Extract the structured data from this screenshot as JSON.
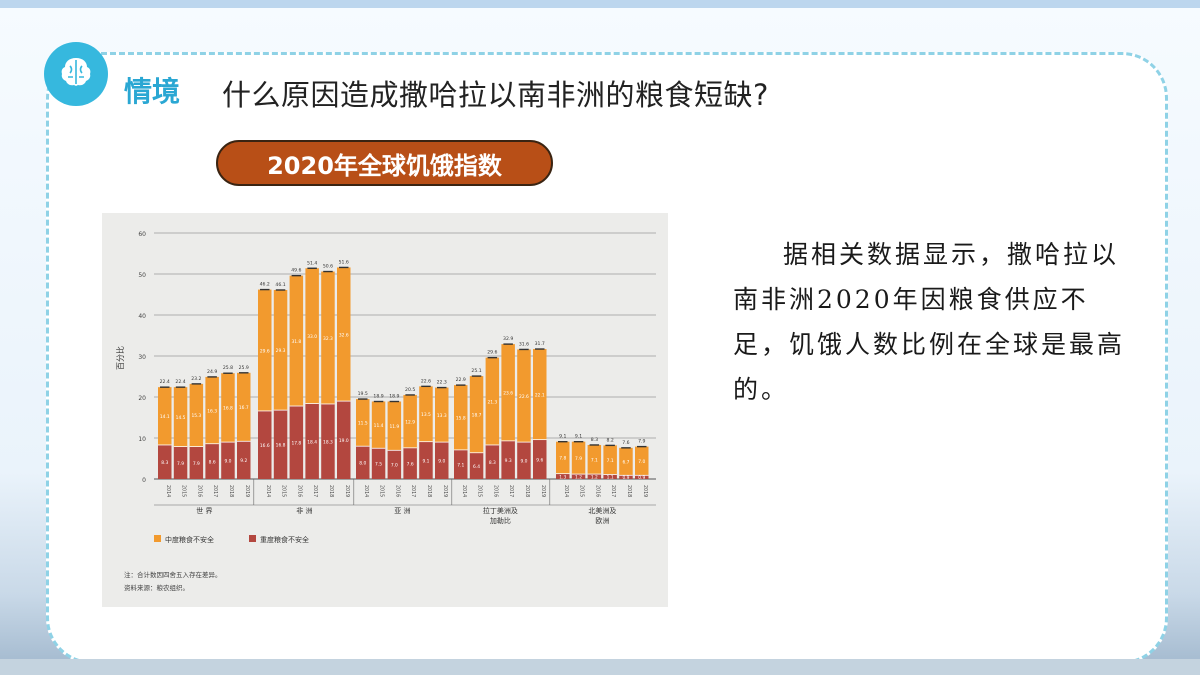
{
  "header": {
    "badge_label": "情境",
    "question": "什么原因造成撒哈拉以南非洲的粮食短缺?"
  },
  "chart_title": "2020年全球饥饿指数",
  "description": "据相关数据显示，撒哈拉以南非洲2020年因粮食供应不足，饥饿人数比例在全球是最高的。",
  "colors": {
    "accent": "#36b8de",
    "pill": "#b84f17",
    "moderate": "#f29a2e",
    "severe": "#b3473f"
  },
  "icons": {
    "badge": "brain-icon"
  },
  "chart_data": {
    "type": "bar",
    "stacked": true,
    "ylabel": "百分比",
    "ylim": [
      0,
      60
    ],
    "yticks": [
      0,
      10,
      20,
      30,
      40,
      50,
      60
    ],
    "grid": true,
    "legend_position": "bottom-left",
    "years": [
      "2014",
      "2015",
      "2016",
      "2017",
      "2018",
      "2019"
    ],
    "groups": [
      {
        "name": "世 界",
        "totals": [
          "22.4",
          "22.4",
          "23.2",
          "24.9",
          "25.8",
          "25.9"
        ],
        "severe": [
          8.3,
          7.9,
          7.9,
          8.6,
          9.0,
          9.2
        ],
        "moderate": [
          14.1,
          14.5,
          15.3,
          16.3,
          16.8,
          16.7
        ]
      },
      {
        "name": "非 洲",
        "totals": [
          "46.2",
          "46.1",
          "49.6",
          "51.4",
          "50.6",
          "51.6"
        ],
        "severe": [
          16.6,
          16.8,
          17.8,
          18.4,
          18.3,
          19.0
        ],
        "moderate": [
          29.6,
          29.3,
          31.8,
          33.0,
          32.3,
          32.6
        ]
      },
      {
        "name": "亚 洲",
        "totals": [
          "19.5",
          "18.9",
          "18.9",
          "20.5",
          "22.6",
          "22.3"
        ],
        "severe": [
          8.0,
          7.5,
          7.0,
          7.6,
          9.1,
          9.0
        ],
        "moderate": [
          11.5,
          11.4,
          11.9,
          12.9,
          13.5,
          13.3
        ]
      },
      {
        "name": "拉丁美洲及加勒比",
        "totals": [
          "22.9",
          "25.1",
          "29.6",
          "32.9",
          "31.6",
          "31.7"
        ],
        "severe": [
          7.1,
          6.4,
          8.3,
          9.3,
          9.0,
          9.6
        ],
        "moderate": [
          15.8,
          18.7,
          21.3,
          23.6,
          22.6,
          22.1
        ]
      },
      {
        "name": "北美洲及欧洲",
        "totals": [
          "9.1",
          "9.1",
          "8.3",
          "8.2",
          "7.6",
          "7.9"
        ],
        "severe": [
          1.3,
          1.2,
          1.2,
          1.1,
          0.9,
          0.9
        ],
        "moderate": [
          7.8,
          7.9,
          7.1,
          7.1,
          6.7,
          7.0
        ]
      }
    ],
    "legend": [
      "中度粮食不安全",
      "重度粮食不安全"
    ],
    "notes": [
      "注：合计数因四舍五入存在差异。",
      "资料来源：粮农组织。"
    ]
  }
}
